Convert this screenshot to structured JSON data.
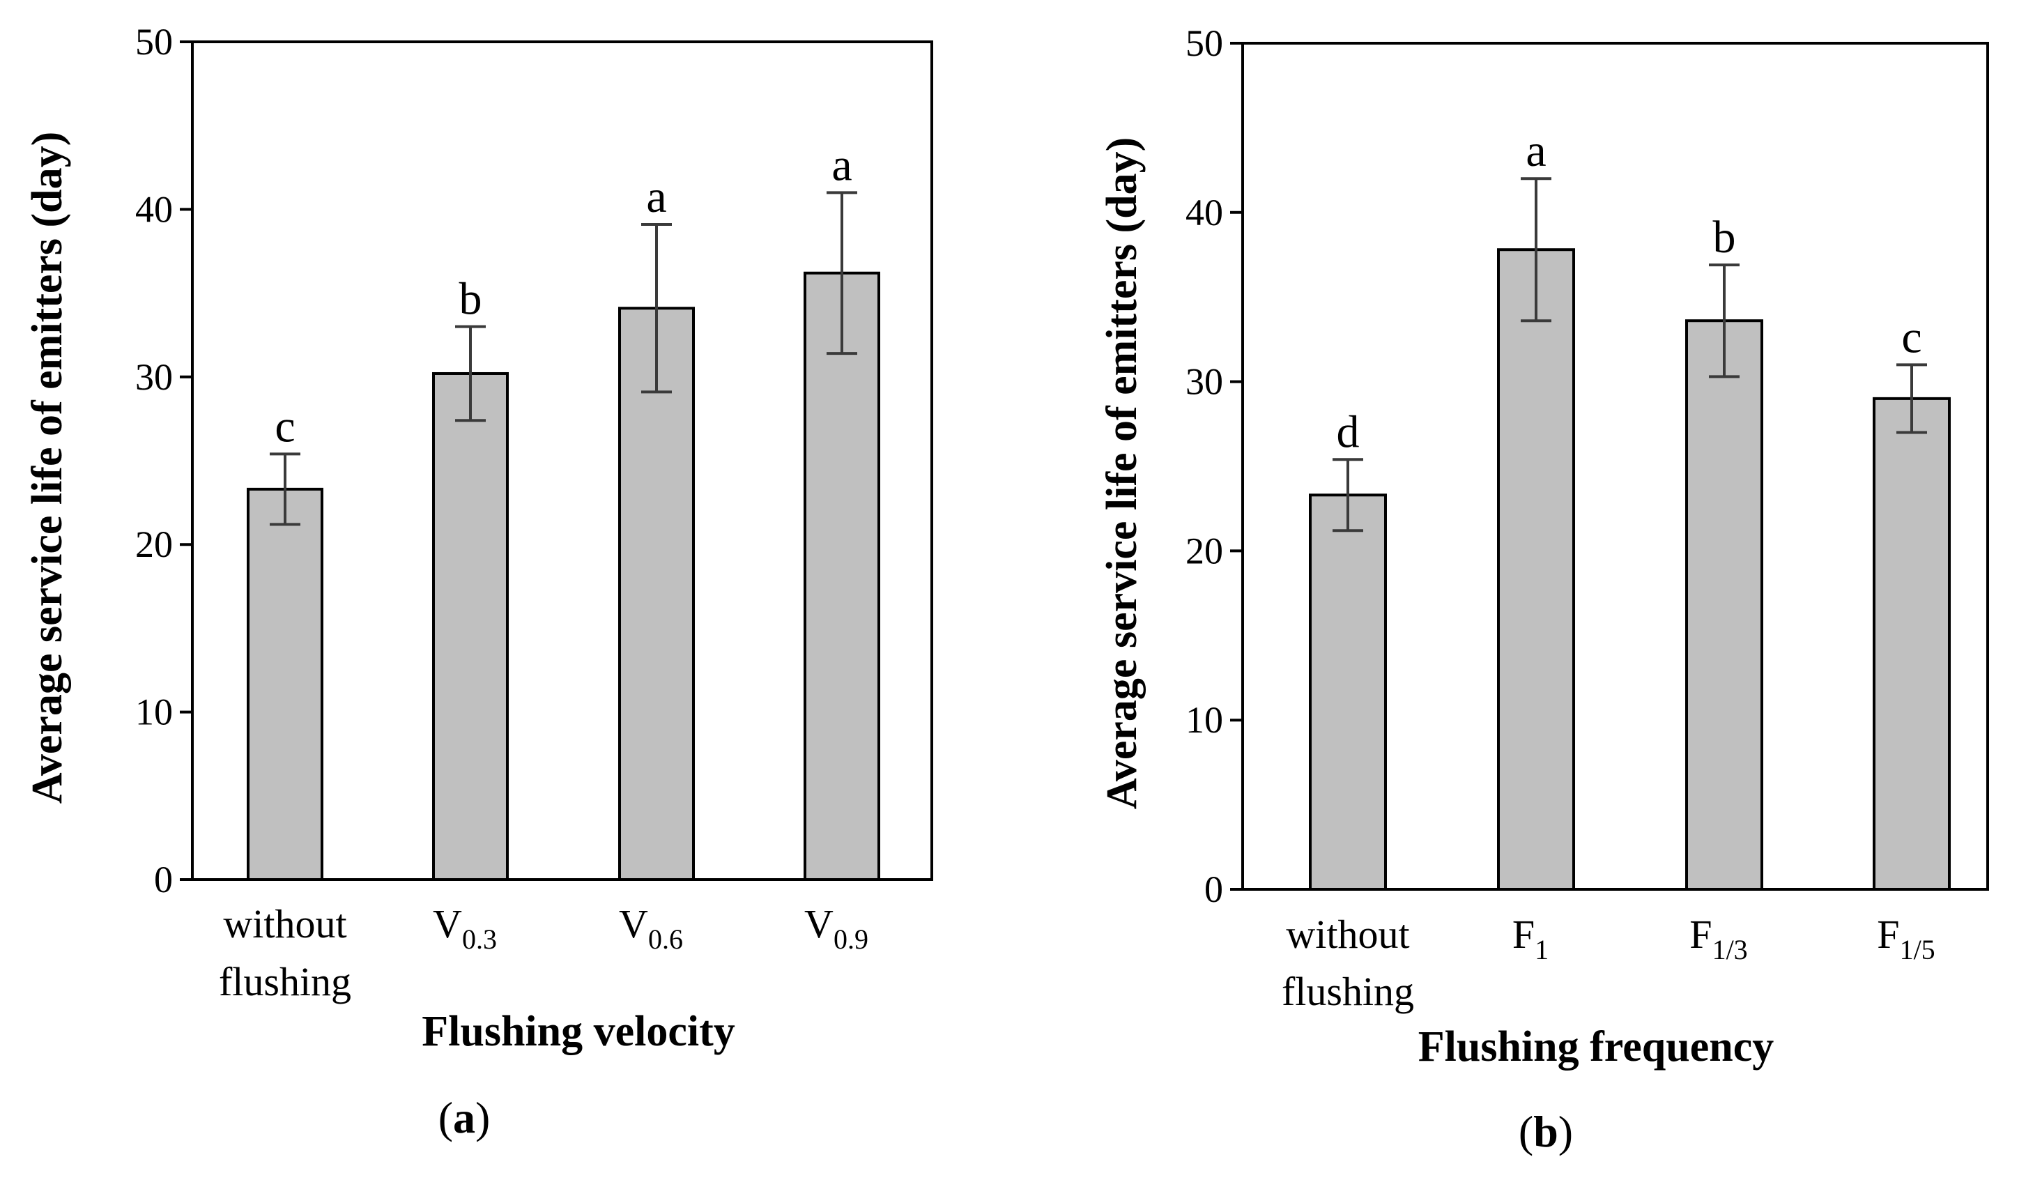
{
  "chart_data": [
    {
      "type": "bar",
      "panel": "a",
      "title": "",
      "xlabel": "Flushing velocity",
      "ylabel": "Average service life of emitters (day)",
      "ylim": [
        0,
        50
      ],
      "yticks": [
        "0",
        "10",
        "20",
        "30",
        "40",
        "50"
      ],
      "grid": false,
      "bar_color": "#c0c0c0",
      "categories": [
        {
          "lines": [
            "without",
            "flushing"
          ]
        },
        {
          "main": "V",
          "sub": "0.3"
        },
        {
          "main": "V",
          "sub": "0.6"
        },
        {
          "main": "V",
          "sub": "0.9"
        }
      ],
      "values": [
        23.3,
        30.2,
        34.1,
        36.2
      ],
      "errors": [
        2.1,
        2.8,
        5.0,
        4.8
      ],
      "significance": [
        "c",
        "b",
        "a",
        "a"
      ],
      "caption": {
        "open": "(",
        "letter": "a",
        "close": ")"
      }
    },
    {
      "type": "bar",
      "panel": "b",
      "title": "",
      "xlabel": "Flushing frequency",
      "ylabel": "Average service life of emitters (day)",
      "ylim": [
        0,
        50
      ],
      "yticks": [
        "0",
        "10",
        "20",
        "30",
        "40",
        "50"
      ],
      "grid": false,
      "bar_color": "#c0c0c0",
      "categories": [
        {
          "lines": [
            "without",
            "flushing"
          ]
        },
        {
          "main": "F",
          "sub": "1"
        },
        {
          "main": "F",
          "sub": "1/3"
        },
        {
          "main": "F",
          "sub": "1/5"
        }
      ],
      "values": [
        23.3,
        37.8,
        33.6,
        29.0
      ],
      "errors": [
        2.1,
        4.2,
        3.3,
        2.0
      ],
      "significance": [
        "d",
        "a",
        "b",
        "c"
      ],
      "caption": {
        "open": "(",
        "letter": "b",
        "close": ")"
      }
    }
  ]
}
